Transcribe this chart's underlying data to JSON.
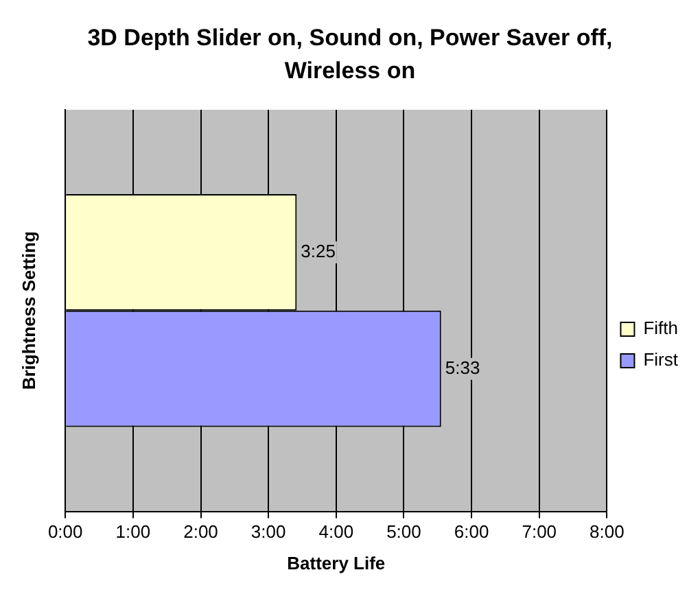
{
  "chart_data": {
    "type": "bar",
    "orientation": "horizontal",
    "title": "3D Depth Slider on, Sound on, Power Saver off, Wireless on",
    "xlabel": "Battery Life",
    "ylabel": "Brightness Setting",
    "categories": [
      null
    ],
    "series": [
      {
        "name": "Fifth",
        "color": "#ffffcc",
        "values": [
          3.4167
        ],
        "value_labels": [
          "3:25"
        ]
      },
      {
        "name": "First",
        "color": "#9999ff",
        "values": [
          5.55
        ],
        "value_labels": [
          "5:33"
        ]
      }
    ],
    "xlim": [
      0,
      8
    ],
    "xticks": [
      {
        "value": 0,
        "label": "0:00"
      },
      {
        "value": 1,
        "label": "1:00"
      },
      {
        "value": 2,
        "label": "2:00"
      },
      {
        "value": 3,
        "label": "3:00"
      },
      {
        "value": 4,
        "label": "4:00"
      },
      {
        "value": 5,
        "label": "5:00"
      },
      {
        "value": 6,
        "label": "6:00"
      },
      {
        "value": 7,
        "label": "7:00"
      },
      {
        "value": 8,
        "label": "8:00"
      }
    ],
    "grid": "x",
    "legend": "right"
  }
}
